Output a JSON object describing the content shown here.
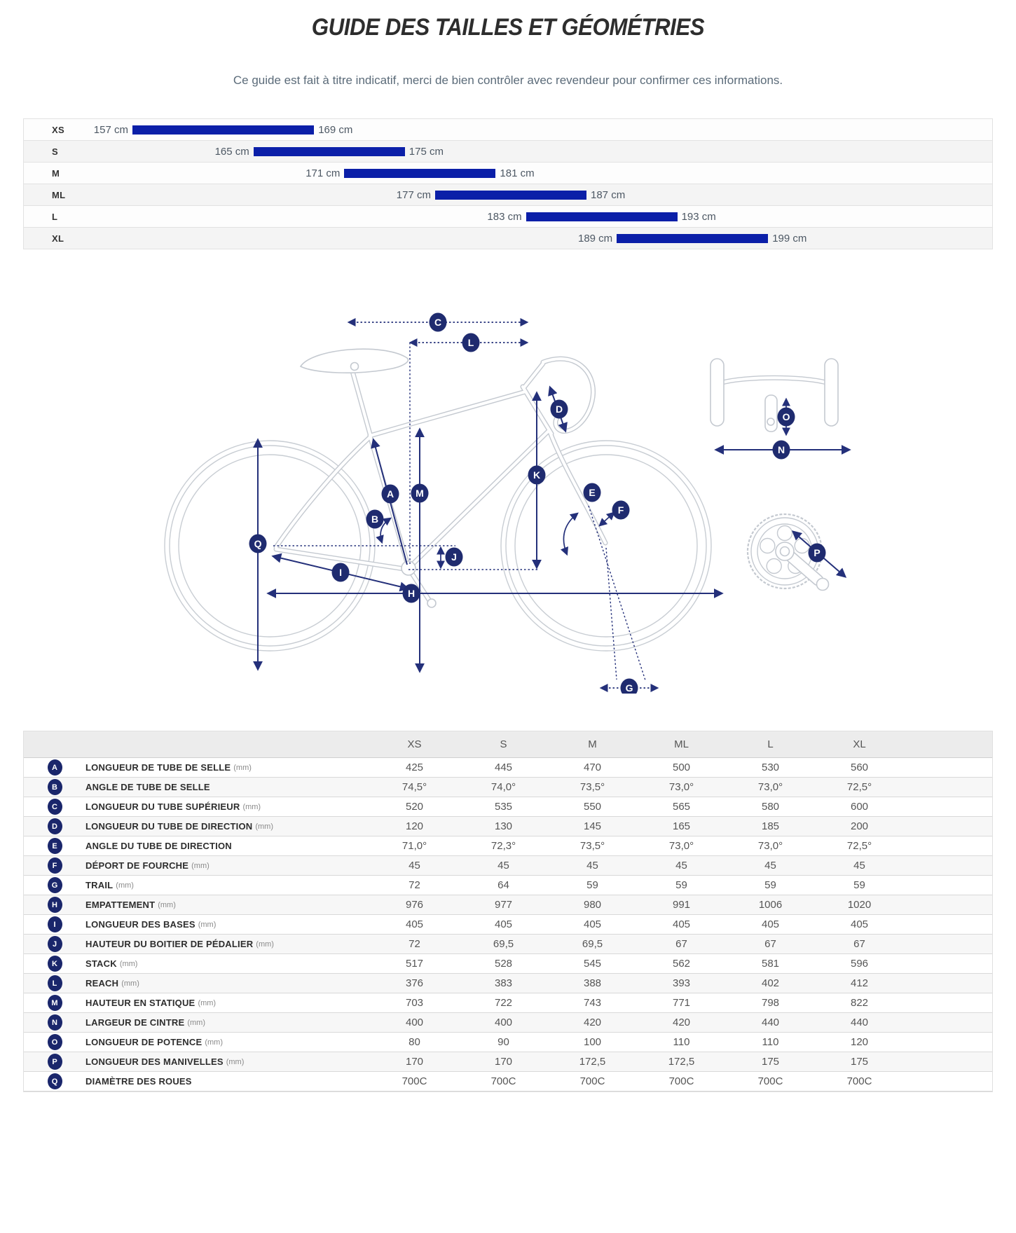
{
  "title": "GUIDE DES TAILLES ET GÉOMÉTRIES",
  "subtitle": "Ce guide est fait à titre indicatif, merci de bien contrôler avec revendeur pour confirmer ces informations.",
  "size_chart": {
    "unit": "cm",
    "bar_color": "#0b1fa8",
    "scale_min_cm": 157,
    "sizes": [
      {
        "label": "XS",
        "min_cm": 157,
        "max_cm": 169
      },
      {
        "label": "S",
        "min_cm": 165,
        "max_cm": 175
      },
      {
        "label": "M",
        "min_cm": 171,
        "max_cm": 181
      },
      {
        "label": "ML",
        "min_cm": 177,
        "max_cm": 187
      },
      {
        "label": "L",
        "min_cm": 183,
        "max_cm": 193
      },
      {
        "label": "XL",
        "min_cm": 189,
        "max_cm": 199
      }
    ]
  },
  "diagram": {
    "markers": [
      "A",
      "B",
      "C",
      "D",
      "E",
      "F",
      "G",
      "H",
      "I",
      "J",
      "K",
      "L",
      "M",
      "N",
      "O",
      "P",
      "Q"
    ]
  },
  "geometry_table": {
    "size_headers": [
      "XS",
      "S",
      "M",
      "ML",
      "L",
      "XL"
    ],
    "rows": [
      {
        "letter": "A",
        "label": "LONGUEUR DE TUBE DE SELLE",
        "unit": "(mm)",
        "values": [
          "425",
          "445",
          "470",
          "500",
          "530",
          "560"
        ]
      },
      {
        "letter": "B",
        "label": "ANGLE DE TUBE DE SELLE",
        "unit": "",
        "values": [
          "74,5°",
          "74,0°",
          "73,5°",
          "73,0°",
          "73,0°",
          "72,5°"
        ]
      },
      {
        "letter": "C",
        "label": "LONGUEUR DU TUBE SUPÉRIEUR",
        "unit": "(mm)",
        "values": [
          "520",
          "535",
          "550",
          "565",
          "580",
          "600"
        ]
      },
      {
        "letter": "D",
        "label": "LONGUEUR DU TUBE DE DIRECTION",
        "unit": "(mm)",
        "values": [
          "120",
          "130",
          "145",
          "165",
          "185",
          "200"
        ]
      },
      {
        "letter": "E",
        "label": "ANGLE DU TUBE DE DIRECTION",
        "unit": "",
        "values": [
          "71,0°",
          "72,3°",
          "73,5°",
          "73,0°",
          "73,0°",
          "72,5°"
        ]
      },
      {
        "letter": "F",
        "label": "DÉPORT DE FOURCHE",
        "unit": "(mm)",
        "values": [
          "45",
          "45",
          "45",
          "45",
          "45",
          "45"
        ]
      },
      {
        "letter": "G",
        "label": "TRAIL",
        "unit": "(mm)",
        "values": [
          "72",
          "64",
          "59",
          "59",
          "59",
          "59"
        ]
      },
      {
        "letter": "H",
        "label": "EMPATTEMENT",
        "unit": "(mm)",
        "values": [
          "976",
          "977",
          "980",
          "991",
          "1006",
          "1020"
        ]
      },
      {
        "letter": "I",
        "label": "LONGUEUR DES BASES",
        "unit": "(mm)",
        "values": [
          "405",
          "405",
          "405",
          "405",
          "405",
          "405"
        ]
      },
      {
        "letter": "J",
        "label": "HAUTEUR DU BOITIER DE PÉDALIER",
        "unit": "(mm)",
        "values": [
          "72",
          "69,5",
          "69,5",
          "67",
          "67",
          "67"
        ]
      },
      {
        "letter": "K",
        "label": "STACK",
        "unit": "(mm)",
        "values": [
          "517",
          "528",
          "545",
          "562",
          "581",
          "596"
        ]
      },
      {
        "letter": "L",
        "label": "REACH",
        "unit": "(mm)",
        "values": [
          "376",
          "383",
          "388",
          "393",
          "402",
          "412"
        ]
      },
      {
        "letter": "M",
        "label": "HAUTEUR EN STATIQUE",
        "unit": "(mm)",
        "values": [
          "703",
          "722",
          "743",
          "771",
          "798",
          "822"
        ]
      },
      {
        "letter": "N",
        "label": "LARGEUR DE CINTRE",
        "unit": "(mm)",
        "values": [
          "400",
          "400",
          "420",
          "420",
          "440",
          "440"
        ]
      },
      {
        "letter": "O",
        "label": "LONGUEUR DE POTENCE",
        "unit": "(mm)",
        "values": [
          "80",
          "90",
          "100",
          "110",
          "110",
          "120"
        ]
      },
      {
        "letter": "P",
        "label": "LONGUEUR DES MANIVELLES",
        "unit": "(mm)",
        "values": [
          "170",
          "170",
          "172,5",
          "172,5",
          "175",
          "175"
        ]
      },
      {
        "letter": "Q",
        "label": "DIAMÈTRE DES ROUES",
        "unit": "",
        "values": [
          "700C",
          "700C",
          "700C",
          "700C",
          "700C",
          "700C"
        ]
      }
    ]
  }
}
